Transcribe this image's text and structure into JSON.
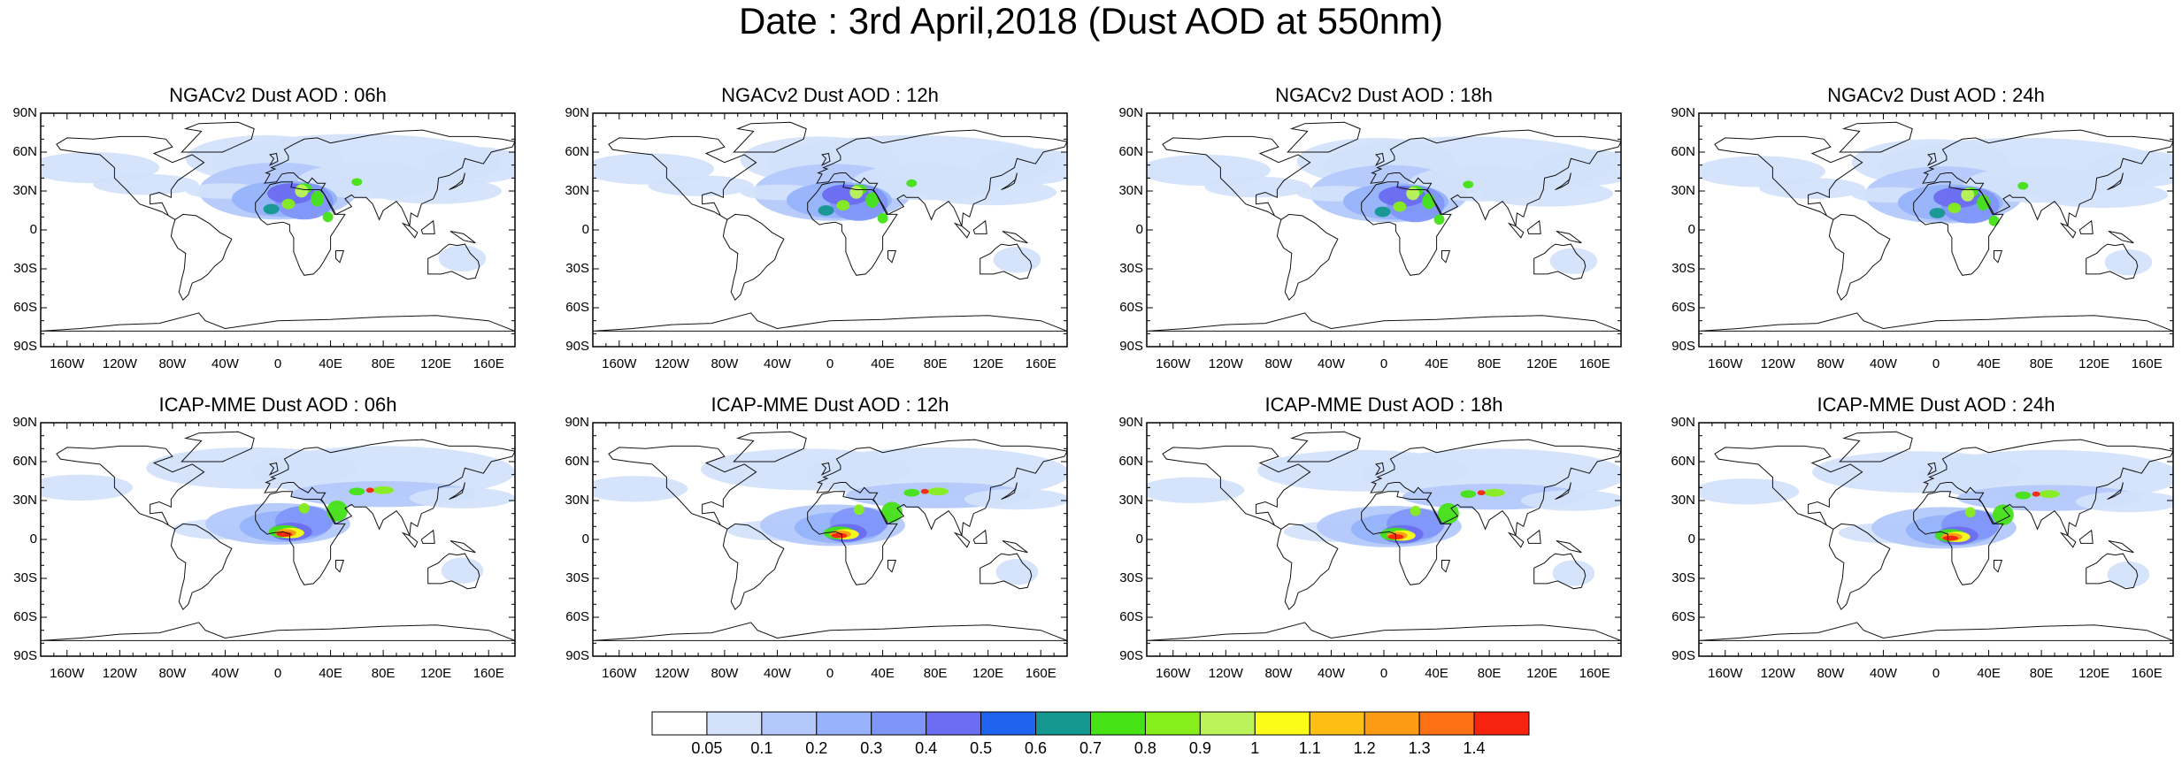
{
  "title": "Date : 3rd April,2018 (Dust AOD at 550nm)",
  "panels": [
    {
      "title": "NGACv2 Dust AOD : 06h",
      "model": "NGACv2",
      "hour": "06h",
      "row": 0,
      "col": 0
    },
    {
      "title": "NGACv2 Dust AOD : 12h",
      "model": "NGACv2",
      "hour": "12h",
      "row": 0,
      "col": 1
    },
    {
      "title": "NGACv2 Dust AOD : 18h",
      "model": "NGACv2",
      "hour": "18h",
      "row": 0,
      "col": 2
    },
    {
      "title": "NGACv2 Dust AOD : 24h",
      "model": "NGACv2",
      "hour": "24h",
      "row": 0,
      "col": 3
    },
    {
      "title": "ICAP-MME Dust AOD : 06h",
      "model": "ICAP-MME",
      "hour": "06h",
      "row": 1,
      "col": 0
    },
    {
      "title": "ICAP-MME Dust AOD : 12h",
      "model": "ICAP-MME",
      "hour": "12h",
      "row": 1,
      "col": 1
    },
    {
      "title": "ICAP-MME Dust AOD : 18h",
      "model": "ICAP-MME",
      "hour": "18h",
      "row": 1,
      "col": 2
    },
    {
      "title": "ICAP-MME Dust AOD : 24h",
      "model": "ICAP-MME",
      "hour": "24h",
      "row": 1,
      "col": 3
    }
  ],
  "lat_ticks": [
    "90N",
    "60N",
    "30N",
    "0",
    "30S",
    "60S",
    "90S"
  ],
  "lon_ticks": [
    "160W",
    "120W",
    "80W",
    "40W",
    "0",
    "40E",
    "80E",
    "120E",
    "160E"
  ],
  "colorbar": {
    "labels": [
      "0.05",
      "0.1",
      "0.2",
      "0.3",
      "0.4",
      "0.5",
      "0.6",
      "0.7",
      "0.8",
      "0.9",
      "1",
      "1.1",
      "1.2",
      "1.3",
      "1.4"
    ],
    "colors": [
      "#ffffff",
      "#d3e1fb",
      "#b4c9fb",
      "#96b3fb",
      "#7f96f9",
      "#6a6df0",
      "#1f63f0",
      "#13978f",
      "#45e216",
      "#86ee1a",
      "#bdf35a",
      "#fcfc19",
      "#fdbf13",
      "#fd9b13",
      "#fd7014",
      "#f7230f"
    ]
  }
}
